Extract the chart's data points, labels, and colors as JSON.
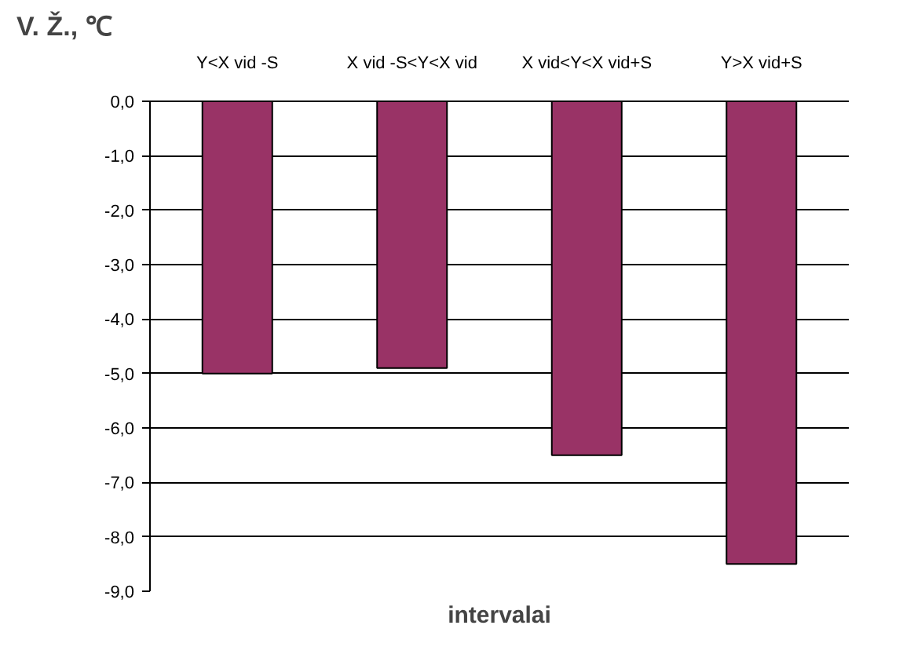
{
  "chart_data": {
    "type": "bar",
    "ylabel": "V. Ž., ℃",
    "xlabel": "intervalai",
    "categories": [
      "Y<X vid -S",
      "X vid -S<Y<X vid",
      "X vid<Y<X vid+S",
      "Y>X vid+S"
    ],
    "values": [
      -5.0,
      -4.9,
      -6.5,
      -8.5
    ],
    "color": "#993366",
    "ylim": [
      -9,
      0
    ],
    "yticks": [
      {
        "value": 0,
        "label": "0,0"
      },
      {
        "value": -1,
        "label": "-1,0"
      },
      {
        "value": -2,
        "label": "-2,0"
      },
      {
        "value": -3,
        "label": "-3,0"
      },
      {
        "value": -4,
        "label": "-4,0"
      },
      {
        "value": -5,
        "label": "-5,0"
      },
      {
        "value": -6,
        "label": "-6,0"
      },
      {
        "value": -7,
        "label": "-7,0"
      },
      {
        "value": -8,
        "label": "-8,0"
      },
      {
        "value": -9,
        "label": "-9,0"
      }
    ],
    "grid": "y"
  }
}
